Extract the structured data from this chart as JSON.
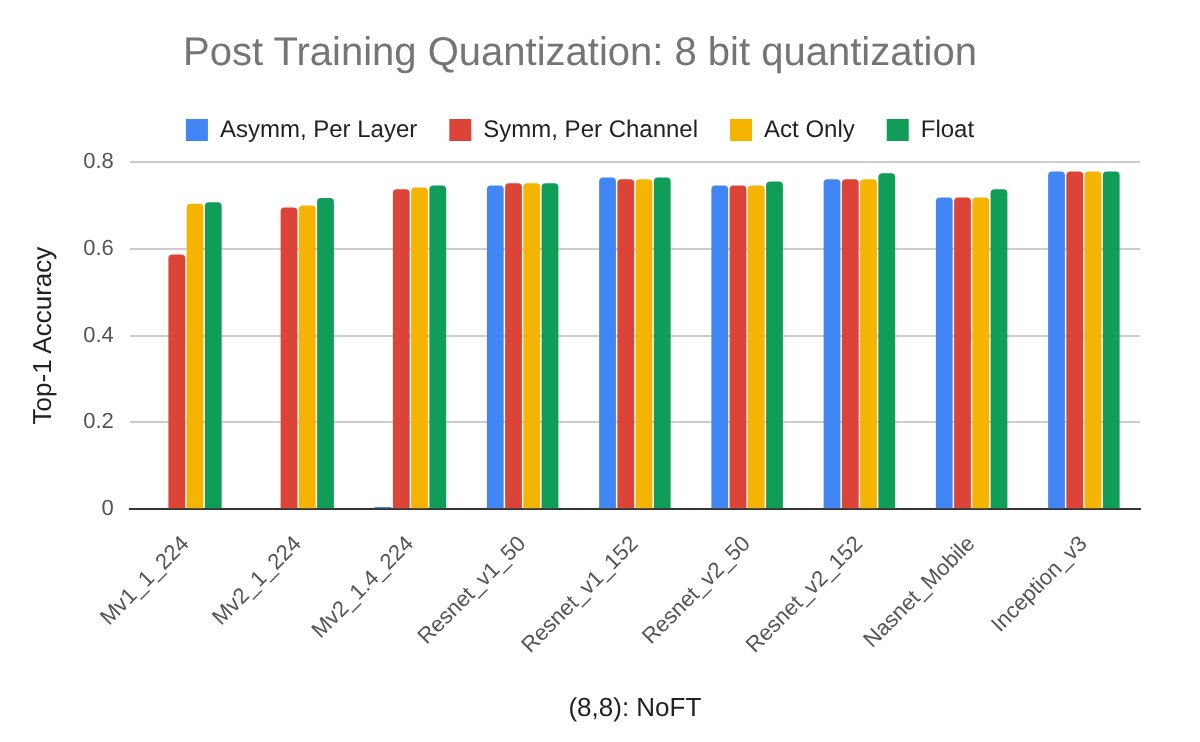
{
  "chart_data": {
    "type": "bar",
    "title": "Post Training Quantization: 8 bit quantization",
    "xlabel": "(8,8): NoFT",
    "ylabel": "Top-1 Accuracy",
    "categories": [
      "Mv1_1_224",
      "Mv2_1_224",
      "Mv2_1.4_224",
      "Resnet_v1_50",
      "Resnet_v1_152",
      "Resnet_v2_50",
      "Resnet_v2_152",
      "Nasnet_Mobile",
      "Inception_v3"
    ],
    "series": [
      {
        "name": "Asymm, Per Layer",
        "color": "#4285f4",
        "values": [
          null,
          null,
          0.005,
          0.746,
          0.764,
          0.746,
          0.76,
          0.718,
          0.778
        ]
      },
      {
        "name": "Symm, Per Channel",
        "color": "#db4437",
        "values": [
          0.587,
          0.695,
          0.737,
          0.751,
          0.76,
          0.746,
          0.76,
          0.718,
          0.778
        ]
      },
      {
        "name": "Act Only",
        "color": "#f4b400",
        "values": [
          0.704,
          0.7,
          0.741,
          0.751,
          0.76,
          0.746,
          0.76,
          0.718,
          0.778
        ]
      },
      {
        "name": "Float",
        "color": "#0f9d58",
        "values": [
          0.707,
          0.717,
          0.746,
          0.751,
          0.764,
          0.755,
          0.774,
          0.737,
          0.778
        ]
      }
    ],
    "ylim": [
      0,
      0.8
    ],
    "yticks": [
      0,
      0.2,
      0.4,
      0.6,
      0.8
    ],
    "grid": "y",
    "legend": "top"
  }
}
